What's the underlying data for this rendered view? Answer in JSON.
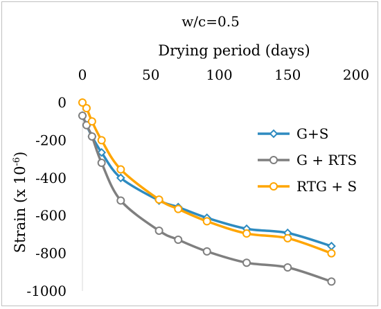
{
  "chart_data": {
    "type": "line",
    "title": "w/c=0.5",
    "xlabel": "Drying period (days)",
    "ylabel": "Strain (x 10",
    "ylabel_sup": "-6",
    "ylabel_close": ")",
    "xlim": [
      0,
      200
    ],
    "ylim": [
      -1000,
      0
    ],
    "xticks": [
      0,
      50,
      100,
      150,
      200
    ],
    "yticks": [
      0,
      -200,
      -400,
      -600,
      -800,
      -1000
    ],
    "x_axis_position": "top",
    "grid": false,
    "legend_position": "right",
    "series": [
      {
        "name": "G+S",
        "color": "#2E8BC0",
        "marker": "diamond",
        "x": [
          0,
          3,
          7,
          14,
          28,
          56,
          70,
          91,
          120,
          150,
          182
        ],
        "y": [
          -70,
          -120,
          -180,
          -265,
          -400,
          -520,
          -555,
          -612,
          -670,
          -692,
          -762
        ]
      },
      {
        "name": "G + RTS",
        "color": "#7F7F7F",
        "marker": "circle",
        "x": [
          0,
          3,
          7,
          14,
          28,
          56,
          70,
          91,
          120,
          150,
          182
        ],
        "y": [
          -70,
          -120,
          -180,
          -320,
          -520,
          -680,
          -728,
          -790,
          -850,
          -875,
          -950
        ]
      },
      {
        "name": "RTG + S",
        "color": "#FFA500",
        "marker": "circle",
        "x": [
          0,
          3,
          7,
          14,
          28,
          56,
          70,
          91,
          120,
          150,
          182
        ],
        "y": [
          0,
          -30,
          -100,
          -200,
          -355,
          -515,
          -565,
          -630,
          -695,
          -720,
          -800
        ]
      }
    ]
  }
}
